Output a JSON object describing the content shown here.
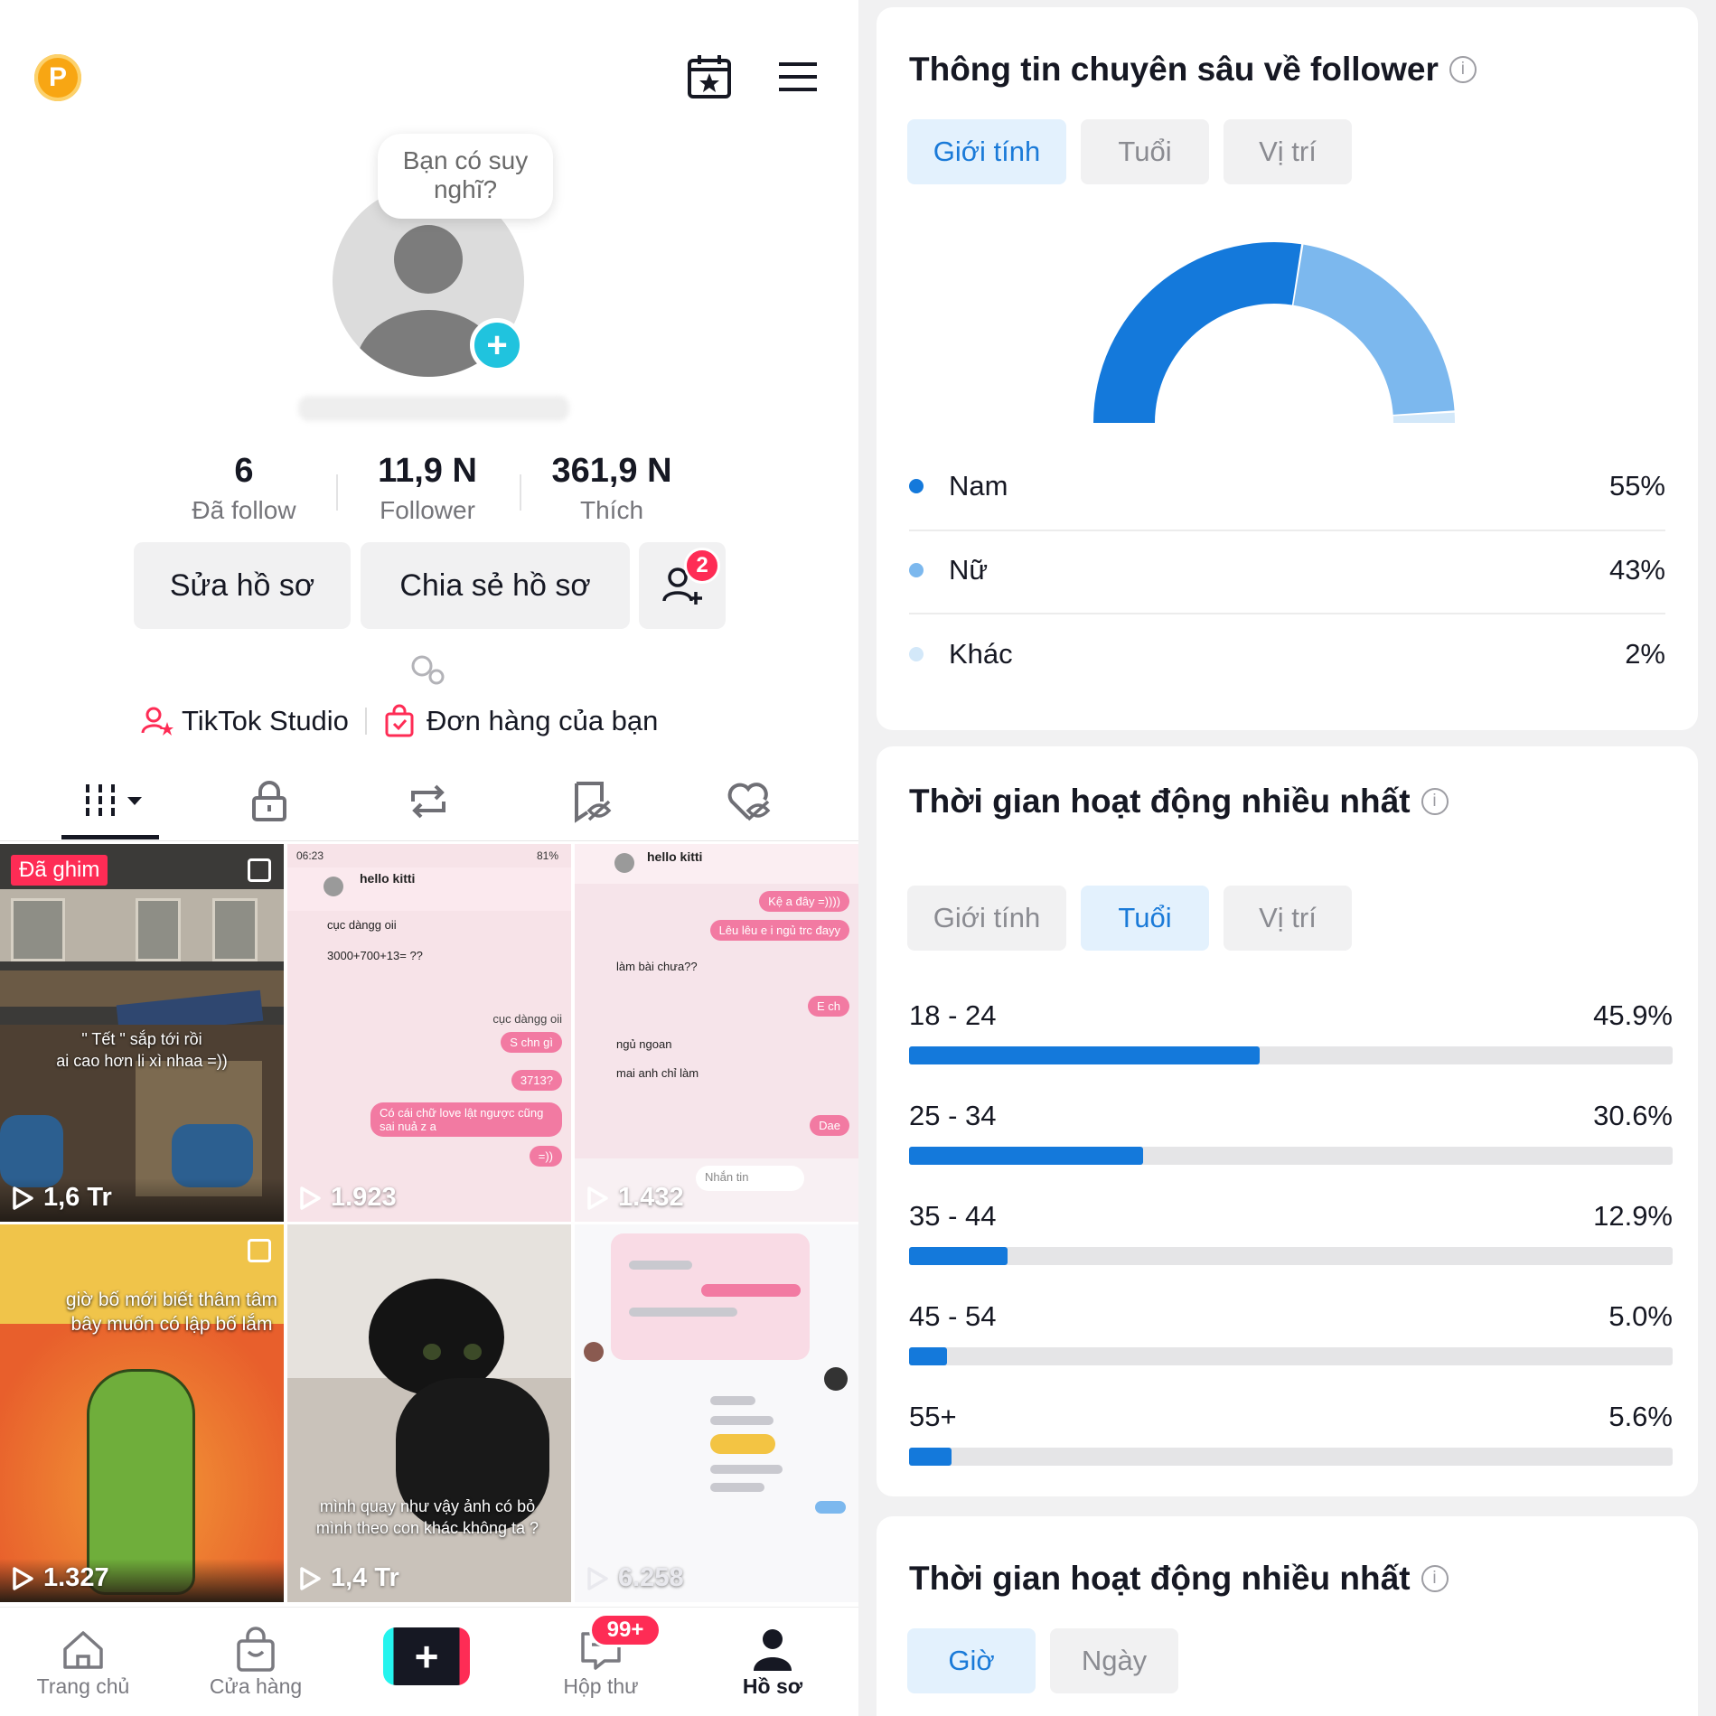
{
  "profile": {
    "thought_bubble": "Bạn có suy nghĩ?",
    "stats": [
      {
        "value": "6",
        "label": "Đã follow"
      },
      {
        "value": "11,9 N",
        "label": "Follower"
      },
      {
        "value": "361,9 N",
        "label": "Thích"
      }
    ],
    "edit_button": "Sửa hồ sơ",
    "share_button": "Chia sẻ hồ sơ",
    "friend_request_count": "2",
    "studio_link": "TikTok Studio",
    "orders_link": "Đơn hàng của bạn"
  },
  "videos": [
    {
      "pinned_label": "Đã ghim",
      "caption": "\" Tết \" sắp tới rồi\nai cao hơn li xì nhaa =))",
      "views": "1,6 Tr"
    },
    {
      "header_name": "hello kitti",
      "status_time": "06:23",
      "battery": "81%",
      "views": "1.923",
      "messages": [
        "cục dàngg oii",
        "3000+700+13= ??",
        "cục dàngg oii",
        "S chn gì",
        "3713?",
        "Có cái chữ love lật ngược cũng sai nuả z a",
        "=))"
      ]
    },
    {
      "header_name": "hello kitti",
      "views": "1.432",
      "messages": [
        "Kệ a đây =))))",
        "Lêu lêu e i ngủ trc đayy",
        "làm bài chưa??",
        "E ch",
        "ngủ ngoan",
        "mai anh chỉ làm",
        "Dae"
      ],
      "input_placeholder": "Nhắn tin"
    },
    {
      "caption": "giờ bố mới biết thâm tâm bây muốn có lập bố lắm",
      "views": "1.327"
    },
    {
      "caption": "mình quay như vậy ảnh có bỏ mình theo con khác không ta ?",
      "views": "1,4 Tr"
    },
    {
      "views": "6.258"
    }
  ],
  "bottom_nav": {
    "items": [
      "Trang chủ",
      "Cửa hàng",
      "Hộp thư",
      "Hồ sơ"
    ],
    "inbox_badge": "99+"
  },
  "follower_insights": {
    "title": "Thông tin chuyên sâu về follower",
    "tabs": [
      "Giới tính",
      "Tuổi",
      "Vị trí"
    ],
    "active_tab": "Giới tính",
    "legend": [
      {
        "label": "Nam",
        "pct": "55%",
        "color": "#1479db"
      },
      {
        "label": "Nữ",
        "pct": "43%",
        "color": "#7cb8ee"
      },
      {
        "label": "Khác",
        "pct": "2%",
        "color": "#d3e8f9"
      }
    ]
  },
  "activity_age": {
    "title": "Thời gian hoạt động nhiều nhất",
    "tabs": [
      "Giới tính",
      "Tuổi",
      "Vị trí"
    ],
    "active_tab": "Tuổi"
  },
  "activity_time": {
    "title": "Thời gian hoạt động nhiều nhất",
    "tabs": [
      "Giờ",
      "Ngày"
    ],
    "active_tab": "Giờ"
  },
  "chart_data": [
    {
      "type": "pie",
      "style": "half-donut",
      "categories": [
        "Nam",
        "Nữ",
        "Khác"
      ],
      "values": [
        55,
        43,
        2
      ],
      "colors": [
        "#1479db",
        "#7cb8ee",
        "#d3e8f9"
      ]
    },
    {
      "type": "bar",
      "orientation": "horizontal",
      "categories": [
        "18 - 24",
        "25 - 34",
        "35 - 44",
        "45 - 54",
        "55+"
      ],
      "values": [
        45.9,
        30.6,
        12.9,
        5.0,
        5.6
      ],
      "value_labels": [
        "45.9%",
        "30.6%",
        "12.9%",
        "5.0%",
        "5.6%"
      ],
      "xlim": [
        0,
        100
      ]
    }
  ]
}
